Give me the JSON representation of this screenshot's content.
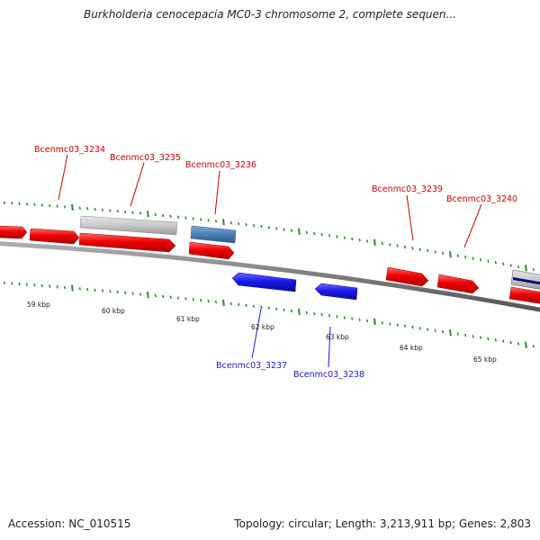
{
  "title": "Burkholderia cenocepacia MC0-3 chromosome 2, complete sequen...",
  "footer": {
    "accession": "Accession: NC_010515",
    "topology": "Topology: circular; Length: 3,213,911 bp; Genes: 2,803"
  },
  "colors": {
    "forward_gene": "#ee0000",
    "reverse_gene": "#1a1aee",
    "pseudo_gene": "#c8c8c8",
    "other_gene": "#4a7fb3",
    "backbone": "#808080",
    "tick": "#2e8b2e",
    "forward_label": "#cc0000",
    "reverse_label": "#1a1acc"
  },
  "ruler": [
    "59 kbp",
    "60 kbp",
    "61 kbp",
    "62 kbp",
    "63 kbp",
    "64 kbp",
    "65 kbp"
  ],
  "genes": [
    {
      "id": "Bcenmc03_3234",
      "strand": "forward"
    },
    {
      "id": "Bcenmc03_3235",
      "strand": "forward"
    },
    {
      "id": "Bcenmc03_3236",
      "strand": "forward"
    },
    {
      "id": "Bcenmc03_3237",
      "strand": "reverse"
    },
    {
      "id": "Bcenmc03_3238",
      "strand": "reverse"
    },
    {
      "id": "Bcenmc03_3239",
      "strand": "forward"
    },
    {
      "id": "Bcenmc03_3240",
      "strand": "forward"
    }
  ]
}
